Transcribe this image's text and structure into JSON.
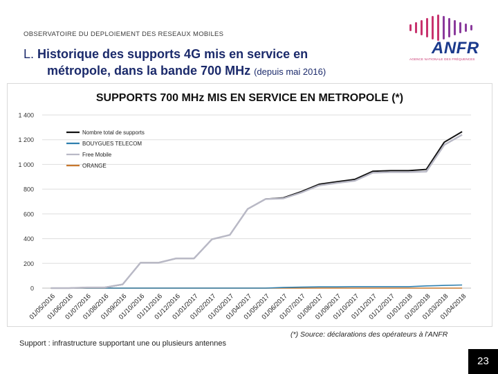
{
  "header": {
    "section_label": "OBSERVATOIRE DU DEPLOIEMENT DES RESEAUX MOBILES",
    "logo_text": "ANFR",
    "logo_subtitle": "AGENCE NATIONALE DES FRÉQUENCES"
  },
  "slide": {
    "title_prefix": "L.",
    "title_line1": "Historique des supports 4G mis en service en",
    "title_line2": "métropole, dans la bande 700 MHz",
    "title_suffix": "(depuis mai 2016)",
    "footnote": "(*) Source: déclarations des opérateurs à l'ANFR",
    "source_note": "Support : infrastructure supportant une ou plusieurs antennes",
    "page_number": "23"
  },
  "colors": {
    "total": "#111111",
    "bouygues": "#2e7fae",
    "free": "#b9b9c6",
    "orange": "#c8782e",
    "grid": "#dddddd"
  },
  "chart_data": {
    "type": "line",
    "title": "SUPPORTS 700 MHz MIS EN SERVICE EN METROPOLE (*)",
    "xlabel": "",
    "ylabel": "",
    "ylim": [
      0,
      1400
    ],
    "yticks": [
      0,
      200,
      400,
      600,
      800,
      1000,
      1200,
      1400
    ],
    "ytick_labels": [
      "0",
      "200",
      "400",
      "600",
      "800",
      "1 000",
      "1 200",
      "1 400"
    ],
    "legend_position": "top-left",
    "categories": [
      "01/05/2016",
      "01/06/2016",
      "01/07/2016",
      "01/08/2016",
      "01/09/2016",
      "01/10/2016",
      "01/11/2016",
      "01/12/2016",
      "01/01/2017",
      "01/02/2017",
      "01/03/2017",
      "01/04/2017",
      "01/05/2017",
      "01/06/2017",
      "01/07/2017",
      "01/08/2017",
      "01/09/2017",
      "01/10/2017",
      "01/11/2017",
      "01/12/2017",
      "01/01/2018",
      "01/02/2018",
      "01/03/2018",
      "01/04/2018"
    ],
    "series": [
      {
        "name": "Nombre total de supports",
        "color_key": "total",
        "width": 2,
        "values": [
          0,
          0,
          5,
          5,
          30,
          205,
          205,
          240,
          240,
          395,
          430,
          640,
          720,
          730,
          780,
          840,
          860,
          880,
          945,
          950,
          950,
          960,
          1180,
          1265
        ]
      },
      {
        "name": "BOUYGUES TELECOM",
        "color_key": "bouygues",
        "width": 1.6,
        "values": [
          0,
          0,
          0,
          0,
          0,
          0,
          0,
          0,
          0,
          0,
          0,
          0,
          0,
          5,
          8,
          10,
          10,
          12,
          12,
          12,
          12,
          18,
          22,
          25
        ]
      },
      {
        "name": "Free Mobile",
        "color_key": "free",
        "width": 2.4,
        "values": [
          0,
          0,
          5,
          5,
          30,
          205,
          205,
          240,
          240,
          395,
          430,
          640,
          720,
          725,
          772,
          830,
          850,
          868,
          933,
          938,
          938,
          942,
          1158,
          1240
        ]
      },
      {
        "name": "ORANGE",
        "color_key": "orange",
        "width": 1.6,
        "values": [
          0,
          0,
          0,
          0,
          0,
          0,
          0,
          0,
          0,
          0,
          0,
          0,
          0,
          0,
          0,
          0,
          0,
          0,
          0,
          0,
          0,
          0,
          0,
          0
        ]
      }
    ]
  }
}
